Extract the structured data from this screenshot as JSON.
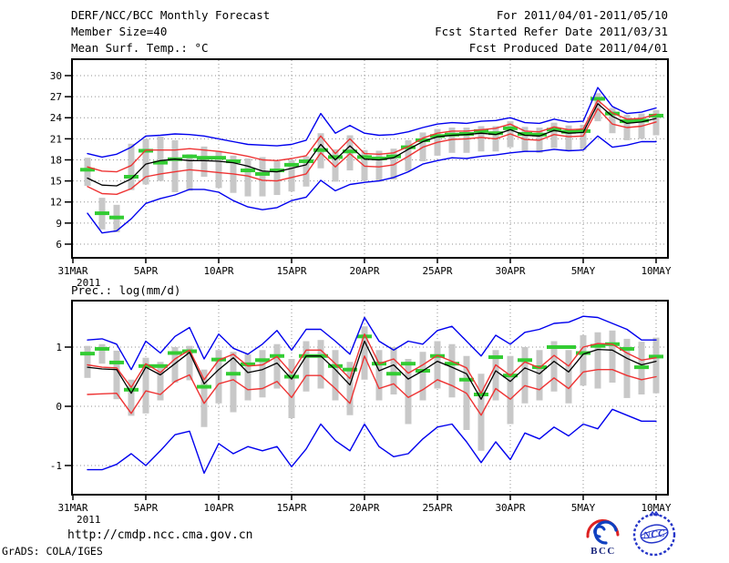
{
  "header": {
    "left": [
      "DERF/NCC/BCC Monthly Forecast",
      "Member Size=40",
      "Mean Surf. Temp.: °C"
    ],
    "right": [
      "For 2011/04/01-2011/05/10",
      "Fcst Started Refer Date 2011/03/31",
      "Fcst Produced Date 2011/04/01"
    ]
  },
  "footer": {
    "url": "http://cmdp.ncc.cma.gov.cn",
    "credit": "GrADS: COLA/IGES"
  },
  "logos": {
    "bcc_label": "BCC",
    "ncc_label": "NCC"
  },
  "colors": {
    "max_min_line": "#0000ee",
    "std_line": "#ee3333",
    "mean_line": "#000000",
    "obs_dash": "#33cc33",
    "spread_bar": "#c8c8c8",
    "grid": "#909090"
  },
  "chart_data": [
    {
      "type": "line",
      "title": "Mean Surf. Temp.: °C",
      "xlabel": "",
      "ylabel": "",
      "year_label": "2011",
      "origin_label": "31MAR",
      "xticks": [
        "31MAR",
        "5APR",
        "10APR",
        "15APR",
        "20APR",
        "25APR",
        "30APR",
        "5MAY",
        "10MAY"
      ],
      "yticks": [
        30,
        27,
        24,
        21,
        18,
        15,
        12,
        9,
        6
      ],
      "ylim": [
        4.0,
        32.3
      ],
      "grid": "dotted",
      "legend": "none",
      "dates": [
        "1APR",
        "2APR",
        "3APR",
        "4APR",
        "5APR",
        "6APR",
        "7APR",
        "8APR",
        "9APR",
        "10APR",
        "11APR",
        "12APR",
        "13APR",
        "14APR",
        "15APR",
        "16APR",
        "17APR",
        "18APR",
        "19APR",
        "20APR",
        "21APR",
        "22APR",
        "23APR",
        "24APR",
        "25APR",
        "26APR",
        "27APR",
        "28APR",
        "29APR",
        "30APR",
        "1MAY",
        "2MAY",
        "3MAY",
        "4MAY",
        "5MAY",
        "6MAY",
        "7MAY",
        "8MAY",
        "9MAY",
        "10MAY"
      ],
      "series": [
        {
          "name": "ensemble-max",
          "role": "max",
          "color": "#0000ee",
          "values": [
            18.9,
            18.4,
            18.8,
            19.8,
            21.4,
            21.5,
            21.7,
            21.6,
            21.4,
            21.0,
            20.6,
            20.2,
            20.1,
            20.0,
            20.2,
            20.8,
            24.6,
            21.8,
            22.9,
            21.8,
            21.5,
            21.6,
            22.0,
            22.6,
            23.1,
            23.3,
            23.2,
            23.5,
            23.6,
            24.0,
            23.3,
            23.2,
            23.8,
            23.4,
            23.5,
            28.3,
            25.6,
            24.6,
            24.8,
            25.4
          ]
        },
        {
          "name": "upper-spread",
          "role": "upper",
          "color": "#ee3333",
          "values": [
            17.0,
            16.4,
            16.3,
            17.2,
            19.4,
            19.4,
            19.4,
            19.6,
            19.4,
            19.2,
            18.9,
            18.5,
            18.0,
            17.9,
            18.2,
            18.6,
            21.4,
            18.9,
            21.0,
            18.9,
            18.8,
            19.0,
            19.9,
            21.1,
            21.8,
            22.1,
            22.1,
            22.3,
            22.5,
            23.1,
            22.1,
            22.0,
            22.7,
            22.3,
            22.4,
            26.5,
            24.7,
            23.8,
            23.9,
            24.5
          ]
        },
        {
          "name": "ensemble-mean",
          "role": "mean",
          "color": "#000000",
          "values": [
            15.4,
            14.4,
            14.3,
            15.3,
            17.4,
            17.9,
            18.1,
            17.9,
            17.9,
            17.8,
            17.6,
            17.1,
            16.4,
            16.3,
            16.8,
            17.3,
            20.2,
            18.0,
            20.0,
            18.1,
            18.0,
            18.3,
            19.5,
            20.6,
            21.3,
            21.5,
            21.6,
            21.8,
            21.6,
            22.3,
            21.5,
            21.4,
            22.2,
            21.8,
            21.9,
            26.0,
            24.2,
            23.2,
            23.4,
            23.9
          ]
        },
        {
          "name": "lower-spread",
          "role": "lower",
          "color": "#ee3333",
          "values": [
            14.2,
            13.2,
            13.1,
            13.9,
            15.6,
            16.0,
            16.3,
            16.6,
            16.4,
            16.2,
            16.0,
            15.7,
            15.1,
            15.0,
            15.5,
            16.0,
            19.0,
            17.0,
            18.9,
            17.1,
            17.0,
            17.3,
            18.5,
            19.8,
            20.5,
            20.9,
            21.0,
            21.2,
            21.0,
            21.7,
            20.9,
            20.8,
            21.6,
            21.3,
            21.4,
            25.3,
            23.1,
            22.6,
            22.8,
            23.4
          ]
        },
        {
          "name": "ensemble-min",
          "role": "min",
          "color": "#0000ee",
          "values": [
            10.4,
            7.6,
            7.9,
            9.6,
            11.8,
            12.5,
            13.0,
            13.8,
            13.8,
            13.4,
            12.2,
            11.3,
            10.9,
            11.2,
            12.2,
            12.7,
            15.1,
            13.6,
            14.5,
            14.8,
            15.0,
            15.5,
            16.3,
            17.4,
            17.9,
            18.3,
            18.2,
            18.5,
            18.7,
            19.0,
            19.2,
            19.2,
            19.5,
            19.3,
            19.4,
            21.4,
            19.8,
            20.1,
            20.6,
            20.6
          ]
        },
        {
          "name": "analysis-dashes",
          "role": "obs",
          "color": "#33cc33",
          "values": [
            16.6,
            10.4,
            9.8,
            15.6,
            19.3,
            17.6,
            18.1,
            18.5,
            18.3,
            18.3,
            17.8,
            16.5,
            16.0,
            16.5,
            17.3,
            17.8,
            19.4,
            18.4,
            19.2,
            18.4,
            18.2,
            18.5,
            19.8,
            20.8,
            21.4,
            21.6,
            21.7,
            22.1,
            21.8,
            22.5,
            21.7,
            21.6,
            22.3,
            22.0,
            22.1,
            26.7,
            24.6,
            23.5,
            23.6,
            24.3
          ]
        }
      ],
      "bars": {
        "name": "member-spread-bars",
        "color": "#c8c8c8",
        "low": [
          14.3,
          8.1,
          7.7,
          13.7,
          14.5,
          15.0,
          13.4,
          13.6,
          15.6,
          14.0,
          13.3,
          12.8,
          12.8,
          13.0,
          13.5,
          14.2,
          16.8,
          14.9,
          16.5,
          15.0,
          14.9,
          15.2,
          16.4,
          17.8,
          18.6,
          19.0,
          19.0,
          19.2,
          19.2,
          19.8,
          19.1,
          19.0,
          19.7,
          19.3,
          19.4,
          23.5,
          21.8,
          20.8,
          21.0,
          21.5
        ],
        "high": [
          18.3,
          12.6,
          11.6,
          20.3,
          21.0,
          21.3,
          20.8,
          18.8,
          19.9,
          19.3,
          18.6,
          18.2,
          18.4,
          17.8,
          18.0,
          18.5,
          21.8,
          19.5,
          21.5,
          19.4,
          19.3,
          19.6,
          20.8,
          21.9,
          22.4,
          22.6,
          22.6,
          22.8,
          22.8,
          23.5,
          22.7,
          22.6,
          23.3,
          22.9,
          23.0,
          27.5,
          25.4,
          24.4,
          24.6,
          25.1
        ]
      }
    },
    {
      "type": "line",
      "title": "Prec.: log(mm/d)",
      "xlabel": "",
      "ylabel": "",
      "year_label": "2011",
      "origin_label": "31MAR",
      "xticks": [
        "31MAR",
        "5APR",
        "10APR",
        "15APR",
        "20APR",
        "25APR",
        "30APR",
        "5MAY",
        "10MAY"
      ],
      "yticks": [
        1,
        0,
        -1
      ],
      "ylim": [
        -1.49,
        1.78
      ],
      "grid": "dotted",
      "legend": "none",
      "dates": [
        "1APR",
        "2APR",
        "3APR",
        "4APR",
        "5APR",
        "6APR",
        "7APR",
        "8APR",
        "9APR",
        "10APR",
        "11APR",
        "12APR",
        "13APR",
        "14APR",
        "15APR",
        "16APR",
        "17APR",
        "18APR",
        "19APR",
        "20APR",
        "21APR",
        "22APR",
        "23APR",
        "24APR",
        "25APR",
        "26APR",
        "27APR",
        "28APR",
        "29APR",
        "30APR",
        "1MAY",
        "2MAY",
        "3MAY",
        "4MAY",
        "5MAY",
        "6MAY",
        "7MAY",
        "8MAY",
        "9MAY",
        "10MAY"
      ],
      "series": [
        {
          "name": "ensemble-max",
          "role": "max",
          "color": "#0000ee",
          "values": [
            1.12,
            1.14,
            1.05,
            0.62,
            1.1,
            0.9,
            1.18,
            1.33,
            0.8,
            1.22,
            0.98,
            0.88,
            1.05,
            1.28,
            0.95,
            1.3,
            1.3,
            1.1,
            0.88,
            1.5,
            1.1,
            0.95,
            1.1,
            1.05,
            1.28,
            1.35,
            1.1,
            0.85,
            1.2,
            1.05,
            1.25,
            1.3,
            1.4,
            1.42,
            1.52,
            1.5,
            1.4,
            1.3,
            1.12,
            1.12
          ]
        },
        {
          "name": "upper-spread",
          "role": "upper",
          "color": "#ee3333",
          "values": [
            0.7,
            0.66,
            0.65,
            0.32,
            0.72,
            0.57,
            0.8,
            0.95,
            0.45,
            0.78,
            0.88,
            0.68,
            0.7,
            0.84,
            0.56,
            0.95,
            0.95,
            0.72,
            0.47,
            1.22,
            0.72,
            0.8,
            0.56,
            0.7,
            0.86,
            0.76,
            0.65,
            0.22,
            0.7,
            0.52,
            0.75,
            0.65,
            0.86,
            0.68,
            1.0,
            1.06,
            1.05,
            0.9,
            0.78,
            0.82
          ]
        },
        {
          "name": "ensemble-mean",
          "role": "mean",
          "color": "#000000",
          "values": [
            0.66,
            0.63,
            0.62,
            0.22,
            0.66,
            0.53,
            0.72,
            0.91,
            0.38,
            0.62,
            0.82,
            0.57,
            0.62,
            0.73,
            0.46,
            0.85,
            0.85,
            0.62,
            0.36,
            1.1,
            0.6,
            0.7,
            0.46,
            0.6,
            0.76,
            0.66,
            0.55,
            0.12,
            0.6,
            0.42,
            0.65,
            0.55,
            0.76,
            0.58,
            0.88,
            0.96,
            0.95,
            0.81,
            0.7,
            0.76
          ]
        },
        {
          "name": "lower-spread",
          "role": "lower",
          "color": "#ee3333",
          "values": [
            0.2,
            0.21,
            0.22,
            -0.12,
            0.26,
            0.2,
            0.42,
            0.53,
            0.05,
            0.38,
            0.45,
            0.28,
            0.3,
            0.42,
            0.15,
            0.52,
            0.52,
            0.3,
            0.05,
            0.85,
            0.3,
            0.38,
            0.15,
            0.28,
            0.45,
            0.35,
            0.22,
            -0.15,
            0.3,
            0.12,
            0.35,
            0.28,
            0.48,
            0.3,
            0.58,
            0.62,
            0.62,
            0.52,
            0.45,
            0.5
          ]
        },
        {
          "name": "ensemble-min",
          "role": "min",
          "color": "#0000ee",
          "values": [
            -1.07,
            -1.07,
            -0.98,
            -0.8,
            -1.0,
            -0.75,
            -0.48,
            -0.42,
            -1.13,
            -0.63,
            -0.8,
            -0.68,
            -0.75,
            -0.68,
            -1.02,
            -0.72,
            -0.3,
            -0.58,
            -0.75,
            -0.3,
            -0.68,
            -0.85,
            -0.8,
            -0.55,
            -0.35,
            -0.3,
            -0.6,
            -0.95,
            -0.6,
            -0.9,
            -0.45,
            -0.55,
            -0.35,
            -0.5,
            -0.3,
            -0.38,
            -0.05,
            -0.15,
            -0.25,
            -0.25
          ]
        },
        {
          "name": "analysis-dashes",
          "role": "obs",
          "color": "#33cc33",
          "values": [
            0.89,
            0.97,
            0.74,
            0.28,
            0.68,
            0.68,
            0.9,
            0.93,
            0.33,
            0.79,
            0.55,
            0.71,
            0.78,
            0.85,
            0.5,
            0.85,
            0.85,
            0.68,
            0.62,
            1.18,
            0.72,
            0.55,
            0.72,
            0.6,
            0.85,
            0.72,
            0.45,
            0.2,
            0.83,
            0.52,
            0.78,
            0.66,
            1.0,
            1.0,
            0.9,
            1.02,
            1.05,
            0.97,
            0.66,
            0.84
          ]
        }
      ],
      "bars": {
        "name": "member-spread-bars",
        "color": "#c8c8c8",
        "low": [
          0.48,
          0.72,
          0.12,
          -0.16,
          -0.12,
          0.1,
          0.4,
          0.44,
          -0.35,
          0.05,
          -0.1,
          0.1,
          0.15,
          0.3,
          -0.2,
          0.25,
          0.3,
          0.1,
          -0.15,
          0.45,
          0.1,
          0.2,
          -0.3,
          0.1,
          0.3,
          0.15,
          -0.4,
          -0.75,
          0.1,
          -0.3,
          0.05,
          0.1,
          0.25,
          0.05,
          0.35,
          0.3,
          0.4,
          0.14,
          0.2,
          0.22
        ],
        "high": [
          1.02,
          1.05,
          0.94,
          0.45,
          0.82,
          0.75,
          1.0,
          1.02,
          0.62,
          0.95,
          0.92,
          0.88,
          0.95,
          1.05,
          0.8,
          1.1,
          1.12,
          0.95,
          0.75,
          1.35,
          0.95,
          1.0,
          0.8,
          0.92,
          1.1,
          1.05,
          0.85,
          0.55,
          0.95,
          0.85,
          1.0,
          0.95,
          1.1,
          0.95,
          1.2,
          1.25,
          1.28,
          1.14,
          1.09,
          1.16
        ]
      }
    }
  ]
}
